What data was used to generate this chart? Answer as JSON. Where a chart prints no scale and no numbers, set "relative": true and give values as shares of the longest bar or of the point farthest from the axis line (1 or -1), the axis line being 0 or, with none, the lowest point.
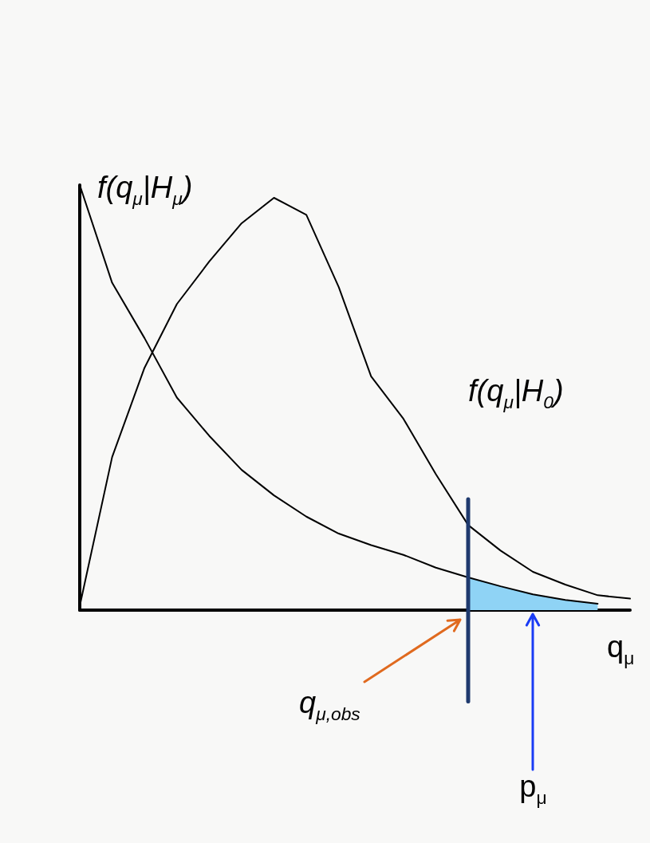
{
  "chart_data": {
    "type": "line",
    "relative": true,
    "xlabel": "q$_{μ}$",
    "grid": false,
    "legend": false,
    "marker": "none",
    "line_style": "solid",
    "categories": [
      null,
      null,
      null,
      null,
      null,
      null,
      null,
      null,
      null,
      null,
      null,
      null,
      null,
      null,
      null,
      null,
      null,
      null
    ],
    "series": [
      {
        "name": "f(q$_{μ}$|H$_{μ}$)",
        "color": "#000000",
        "values": [
          1,
          0.77,
          0.64,
          0.5,
          0.41,
          0.33,
          0.27,
          0.22,
          0.18,
          0.153,
          0.13,
          0.1,
          0.077,
          0.056,
          0.037,
          0.024,
          0.015,
          null
        ]
      },
      {
        "name": "f(q$_{μ}$|H$_{0}$)",
        "color": "#000000",
        "values": [
          0.01,
          0.36,
          0.57,
          0.72,
          0.82,
          0.91,
          0.97,
          0.93,
          0.76,
          0.55,
          0.45,
          0.32,
          0.2,
          0.14,
          0.09,
          0.06,
          0.035,
          0.027
        ]
      },
      {
        "name": "p$_{μ}$",
        "type": "area",
        "color": "#8fd3f5",
        "values": [
          null,
          null,
          null,
          null,
          null,
          null,
          null,
          null,
          null,
          null,
          null,
          null,
          0.077,
          0.056,
          0.037,
          0.024,
          0.015,
          null
        ]
      }
    ],
    "annotations": [
      "q$_{μ,obs}$"
    ]
  }
}
